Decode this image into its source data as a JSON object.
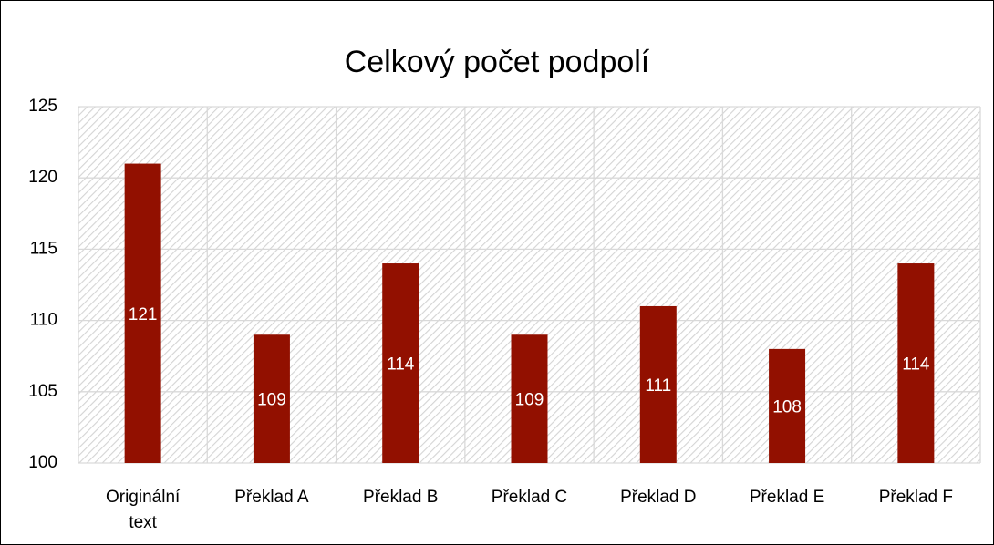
{
  "chart_data": {
    "type": "bar",
    "title": "Celkový počet podpolí",
    "categories": [
      "Originální text",
      "Překlad A",
      "Překlad B",
      "Překlad C",
      "Překlad D",
      "Překlad E",
      "Překlad F"
    ],
    "values": [
      121,
      109,
      114,
      109,
      111,
      108,
      114
    ],
    "color": "#921000",
    "ylim": [
      100,
      125
    ],
    "yticks": [
      100,
      105,
      110,
      115,
      120,
      125
    ],
    "grid": true
  }
}
